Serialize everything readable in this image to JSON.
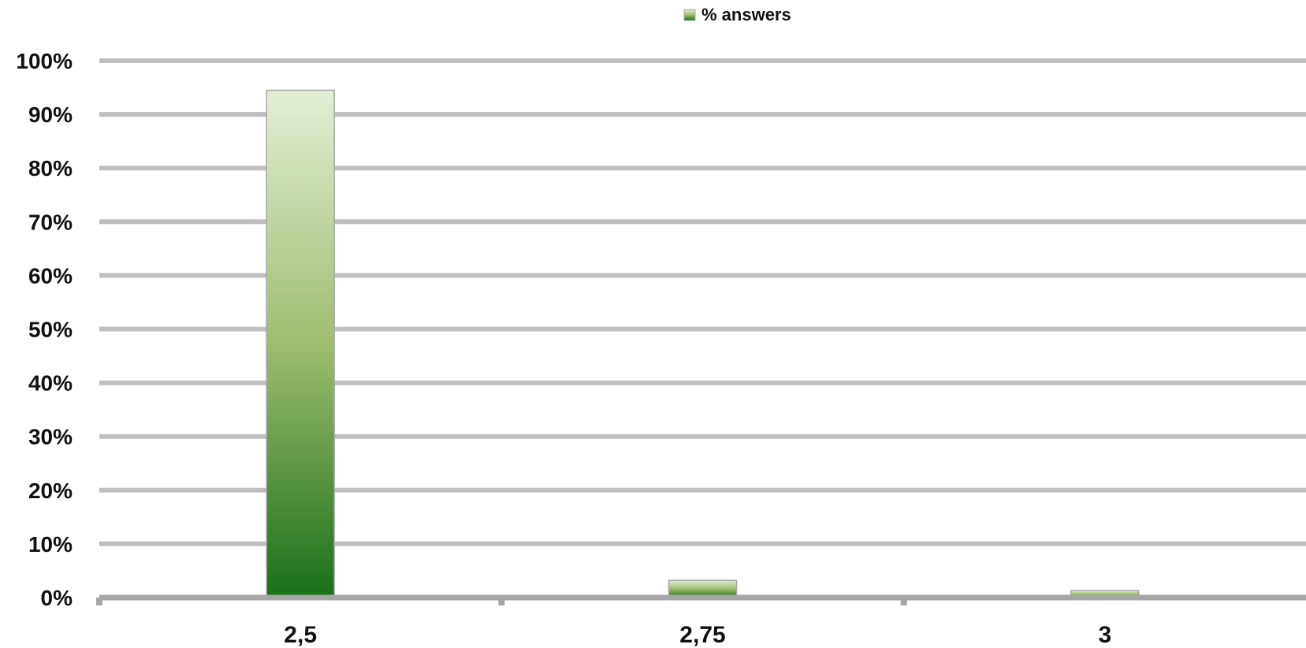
{
  "chart_data": {
    "type": "bar",
    "categories": [
      "2,5",
      "2,75",
      "3"
    ],
    "series": [
      {
        "name": "% answers",
        "values": [
          94.5,
          3.2,
          1.3
        ]
      }
    ],
    "ylim": [
      0,
      100
    ],
    "yticks": [
      "0%",
      "10%",
      "20%",
      "30%",
      "40%",
      "50%",
      "60%",
      "70%",
      "80%",
      "90%",
      "100%"
    ],
    "grid": true,
    "legend_position": "top-center",
    "colors": {
      "bar_top": "#e2eed5",
      "bar_bottom": "#187018",
      "bar_border": "#a8a8a8",
      "grid": "#bfbfbf",
      "axis": "#a6a6a6"
    }
  }
}
